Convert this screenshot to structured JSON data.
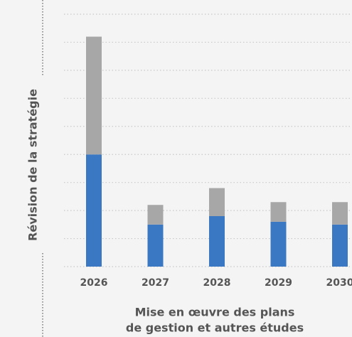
{
  "chart_data": {
    "type": "stacked_bar",
    "ylabel": "Révision de la stratégie",
    "xlabel": [
      "Mise en œuvre des plans",
      "de gestion et autres études"
    ],
    "categories": [
      "2026",
      "2027",
      "2028",
      "2029",
      "2030"
    ],
    "series": [
      {
        "color": "#3b78c3",
        "values": [
          4.0,
          1.5,
          1.8,
          1.6,
          1.5
        ]
      },
      {
        "color": "#a7a7a7",
        "values": [
          4.2,
          0.7,
          1.0,
          0.7,
          0.8
        ]
      }
    ],
    "ylim": [
      0,
      9
    ],
    "yticks": [
      0,
      1,
      2,
      3,
      4,
      5,
      6,
      7,
      8,
      9
    ],
    "grid": true
  }
}
